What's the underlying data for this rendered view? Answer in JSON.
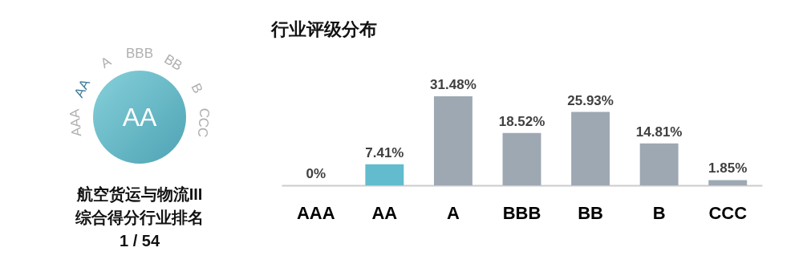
{
  "chart_data": {
    "type": "bar",
    "title": "行业评级分布",
    "categories": [
      "AAA",
      "AA",
      "A",
      "BBB",
      "BB",
      "B",
      "CCC"
    ],
    "values": [
      0,
      7.41,
      31.48,
      18.52,
      25.93,
      14.81,
      1.85
    ],
    "colors": [
      "#9ea8b3",
      "#62bccd",
      "#9ea8b3",
      "#9ea8b3",
      "#9ea8b3",
      "#9ea8b3",
      "#9ea8b3"
    ],
    "value_labels": [
      "0%",
      "7.41%",
      "31.48%",
      "18.52%",
      "25.93%",
      "14.81%",
      "1.85%"
    ],
    "annotations": [
      "AA",
      "航空货运与物流III",
      "综合得分行业排名",
      "1 / 54"
    ],
    "grid": false
  }
}
